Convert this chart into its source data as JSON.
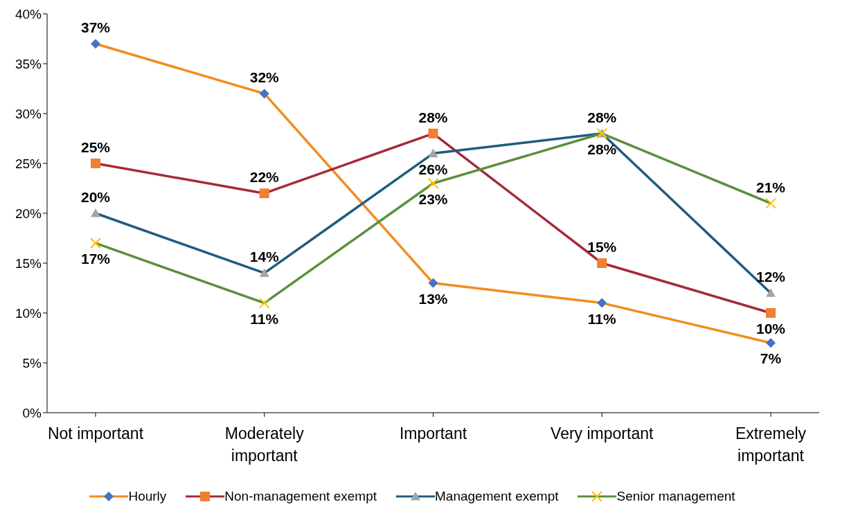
{
  "chart_data": {
    "type": "line",
    "categories": [
      "Not important",
      "Moderately important",
      "Important",
      "Very important",
      "Extremely important"
    ],
    "series": [
      {
        "name": "Hourly",
        "color": "#f28c1e",
        "marker": "diamond",
        "colors": [
          "#4472c4",
          "#4472c4",
          "#4472c4",
          "#4472c4",
          "#4472c4"
        ],
        "values": [
          37,
          32,
          13,
          11,
          7
        ],
        "value_labels": [
          "37%",
          "32%",
          "13%",
          "11%",
          "7%"
        ]
      },
      {
        "name": "Non-management exempt",
        "color": "#a52a3a",
        "marker": "square",
        "colors": [
          "#f07f32",
          "#f07f32",
          "#f07f32",
          "#f07f32",
          "#f07f32"
        ],
        "values": [
          25,
          22,
          28,
          15,
          10
        ],
        "value_labels": [
          "25%",
          "22%",
          "28%",
          "15%",
          "10%"
        ]
      },
      {
        "name": "Management exempt",
        "color": "#1f5c80",
        "marker": "triangle",
        "colors": [
          "#a5a5a5",
          "#a5a5a5",
          "#a5a5a5",
          "#a5a5a5",
          "#a5a5a5"
        ],
        "values": [
          20,
          14,
          26,
          28,
          12
        ],
        "value_labels": [
          "20%",
          "14%",
          "26%",
          "28%",
          "12%"
        ]
      },
      {
        "name": "Senior management",
        "color": "#5a8f3c",
        "marker": "cross",
        "colors": [
          "#ffc000",
          "#ffc000",
          "#ffc000",
          "#ffc000",
          "#ffc000"
        ],
        "values": [
          17,
          11,
          23,
          28,
          21
        ],
        "value_labels": [
          "17%",
          "11%",
          "23%",
          "28%",
          "21%"
        ]
      }
    ],
    "ylim": [
      0,
      40
    ],
    "yticks": [
      {
        "value": 0,
        "label": "0%"
      },
      {
        "value": 5,
        "label": "5%"
      },
      {
        "value": 10,
        "label": "10%"
      },
      {
        "value": 15,
        "label": "15%"
      },
      {
        "value": 20,
        "label": "20%"
      },
      {
        "value": 25,
        "label": "25%"
      },
      {
        "value": 30,
        "label": "30%"
      },
      {
        "value": 35,
        "label": "35%"
      },
      {
        "value": 40,
        "label": "40%"
      }
    ],
    "legend": "bottom",
    "line_style": "solid"
  }
}
